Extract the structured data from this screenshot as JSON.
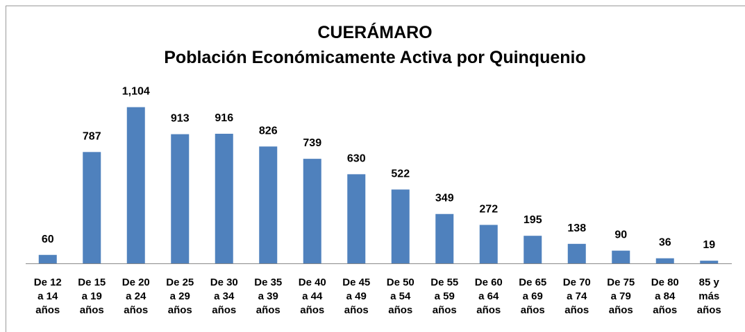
{
  "chart_data": {
    "type": "bar",
    "title": "CUERÁMARO",
    "subtitle": "Población Económicamente Activa por Quinquenio",
    "categories": [
      "De 12 a 14 años",
      "De 15 a 19 años",
      "De 20 a 24 años",
      "De 25 a 29 años",
      "De 30 a 34 años",
      "De 35 a 39 años",
      "De 40 a 44 años",
      "De 45 a 49 años",
      "De 50 a 54 años",
      "De 55 a 59 años",
      "De 60 a 64 años",
      "De 65 a 69 años",
      "De 70 a 74 años",
      "De 75 a 79 años",
      "De 80 a 84 años",
      "85 y más años"
    ],
    "values": [
      60,
      787,
      1104,
      913,
      916,
      826,
      739,
      630,
      522,
      349,
      272,
      195,
      138,
      90,
      36,
      19
    ],
    "value_labels": [
      "60",
      "787",
      "1,104",
      "913",
      "916",
      "826",
      "739",
      "630",
      "522",
      "349",
      "272",
      "195",
      "138",
      "90",
      "36",
      "19"
    ],
    "color": "#4f81bd",
    "ylim": [
      0,
      1200
    ]
  }
}
